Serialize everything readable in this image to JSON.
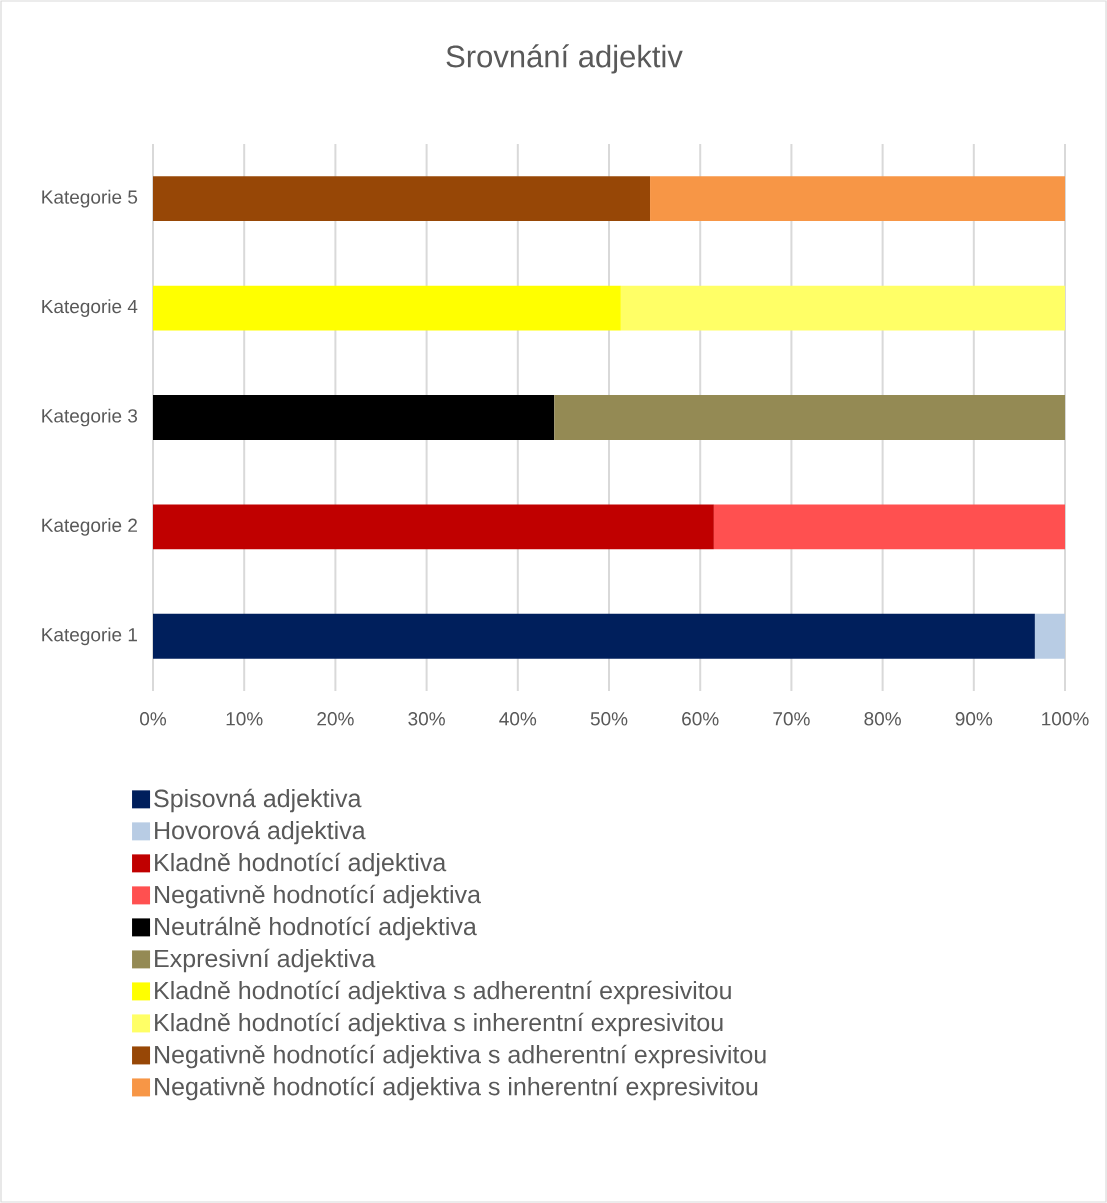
{
  "chart_data": {
    "type": "bar",
    "orientation": "horizontal",
    "stacked": true,
    "title": "Srovnání adjektiv",
    "categories": [
      "Kategorie 5",
      "Kategorie 4",
      "Kategorie 3",
      "Kategorie 2",
      "Kategorie 1"
    ],
    "series": [
      {
        "name": "Spisovná adjektiva",
        "color": "#001f5c",
        "values": [
          null,
          null,
          null,
          null,
          96.7
        ]
      },
      {
        "name": "Hovorová adjektiva",
        "color": "#b8cce4",
        "values": [
          null,
          null,
          null,
          null,
          3.3
        ]
      },
      {
        "name": "Kladně hodnotící adjektiva",
        "color": "#c00000",
        "values": [
          null,
          null,
          null,
          61.5,
          null
        ]
      },
      {
        "name": "Negativně hodnotící adjektiva",
        "color": "#ff5050",
        "values": [
          null,
          null,
          null,
          38.5,
          null
        ]
      },
      {
        "name": "Neutrálně hodnotící adjektiva",
        "color": "#000000",
        "values": [
          null,
          null,
          44.0,
          null,
          null
        ]
      },
      {
        "name": "Expresivní adjektiva",
        "color": "#948a54",
        "values": [
          null,
          null,
          56.0,
          null,
          null
        ]
      },
      {
        "name": "Kladně hodnotící adjektiva s adherentní expresivitou",
        "color": "#ffff00",
        "values": [
          null,
          51.3,
          null,
          null,
          null
        ]
      },
      {
        "name": "Kladně hodnotící adjektiva s inherentní expresivitou",
        "color": "#ffff66",
        "values": [
          null,
          48.7,
          null,
          null,
          null
        ]
      },
      {
        "name": "Negativně hodnotící adjektiva s adherentní expresivitou",
        "color": "#974706",
        "values": [
          54.5,
          null,
          null,
          null,
          null
        ]
      },
      {
        "name": "Negativně hodnotící adjektiva s inherentní expresivitou",
        "color": "#f79646",
        "values": [
          45.5,
          null,
          null,
          null,
          null
        ]
      }
    ],
    "xlim": [
      0,
      100
    ],
    "xticks": [
      {
        "value": 0,
        "label": "0%"
      },
      {
        "value": 10,
        "label": "10%"
      },
      {
        "value": 20,
        "label": "20%"
      },
      {
        "value": 30,
        "label": "30%"
      },
      {
        "value": 40,
        "label": "40%"
      },
      {
        "value": 50,
        "label": "50%"
      },
      {
        "value": 60,
        "label": "60%"
      },
      {
        "value": 70,
        "label": "70%"
      },
      {
        "value": 80,
        "label": "80%"
      },
      {
        "value": 90,
        "label": "90%"
      },
      {
        "value": 100,
        "label": "100%"
      }
    ],
    "grid": "x",
    "legend": "bottom"
  }
}
